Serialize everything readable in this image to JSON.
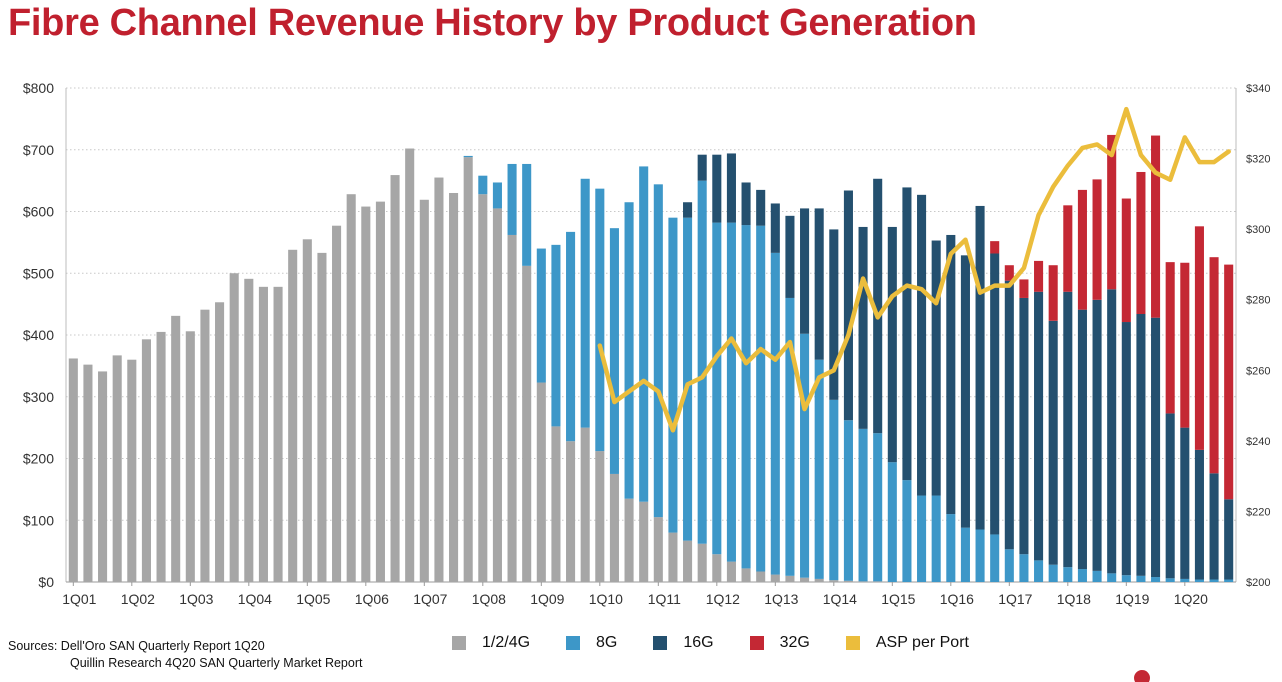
{
  "title": "Fibre Channel Revenue History by Product Generation",
  "sources": {
    "line1": "Sources:  Dell'Oro SAN Quarterly Report 1Q20",
    "line2": "Quillin Research 4Q20 SAN Quarterly Market Report"
  },
  "colors": {
    "g124": "#a6a6a6",
    "g8": "#3d97c8",
    "g16": "#24506f",
    "g32": "#c42834",
    "asp": "#ebbd3c"
  },
  "chart_data": {
    "type": "bar",
    "stacked": true,
    "title": "Fibre Channel Revenue History by Product Generation",
    "ylim": [
      0,
      800
    ],
    "y2lim": [
      200,
      340
    ],
    "y_ticks": [
      "$0",
      "$100",
      "$200",
      "$300",
      "$400",
      "$500",
      "$600",
      "$700",
      "$800"
    ],
    "y2_ticks": [
      "$200",
      "$220",
      "$240",
      "$260",
      "$280",
      "$300",
      "$320",
      "$340"
    ],
    "x_tick_labels": [
      "1Q01",
      "1Q02",
      "1Q03",
      "1Q04",
      "1Q05",
      "1Q06",
      "1Q07",
      "1Q08",
      "1Q09",
      "1Q10",
      "1Q11",
      "1Q12",
      "1Q13",
      "1Q14",
      "1Q15",
      "1Q16",
      "1Q17",
      "1Q18",
      "1Q19",
      "1Q20"
    ],
    "first_quarter": "1Q01",
    "grid": true,
    "legend_position": "bottom",
    "series": [
      {
        "name": "1/2/4G",
        "color": "#a6a6a6",
        "values": [
          362,
          352,
          341,
          367,
          360,
          393,
          405,
          431,
          406,
          441,
          453,
          500,
          491,
          478,
          478,
          538,
          555,
          533,
          577,
          628,
          608,
          616,
          659,
          702,
          619,
          655,
          630,
          688,
          628,
          605,
          562,
          512,
          323,
          252,
          228,
          250,
          212,
          175,
          135,
          130,
          105,
          80,
          67,
          62,
          45,
          33,
          22,
          17,
          12,
          10,
          7,
          5,
          3,
          2,
          1,
          1,
          0,
          0,
          0,
          0,
          0,
          0,
          0,
          0,
          0,
          0,
          0,
          0,
          0,
          0,
          0,
          0,
          0,
          0,
          0,
          0,
          0,
          0,
          0,
          0
        ]
      },
      {
        "name": "8G",
        "color": "#3d97c8",
        "values": [
          0,
          0,
          0,
          0,
          0,
          0,
          0,
          0,
          0,
          0,
          0,
          0,
          0,
          0,
          0,
          0,
          0,
          0,
          0,
          0,
          0,
          0,
          0,
          0,
          0,
          0,
          0,
          2,
          30,
          42,
          115,
          165,
          217,
          294,
          339,
          403,
          425,
          398,
          480,
          543,
          539,
          510,
          523,
          588,
          537,
          549,
          556,
          560,
          521,
          450,
          395,
          355,
          292,
          260,
          247,
          240,
          194,
          165,
          140,
          140,
          110,
          88,
          85,
          77,
          53,
          45,
          35,
          28,
          24,
          21,
          18,
          14,
          11,
          10,
          8,
          6,
          5,
          4,
          4,
          4
        ]
      },
      {
        "name": "16G",
        "color": "#24506f",
        "values": [
          0,
          0,
          0,
          0,
          0,
          0,
          0,
          0,
          0,
          0,
          0,
          0,
          0,
          0,
          0,
          0,
          0,
          0,
          0,
          0,
          0,
          0,
          0,
          0,
          0,
          0,
          0,
          0,
          0,
          0,
          0,
          0,
          0,
          0,
          0,
          0,
          0,
          0,
          0,
          0,
          0,
          0,
          25,
          42,
          110,
          112,
          69,
          58,
          80,
          133,
          203,
          245,
          276,
          372,
          327,
          412,
          381,
          474,
          487,
          413,
          452,
          441,
          524,
          455,
          435,
          415,
          435,
          395,
          446,
          420,
          439,
          460,
          410,
          424,
          420,
          267,
          245,
          210,
          172,
          130
        ]
      },
      {
        "name": "32G",
        "color": "#c42834",
        "values": [
          0,
          0,
          0,
          0,
          0,
          0,
          0,
          0,
          0,
          0,
          0,
          0,
          0,
          0,
          0,
          0,
          0,
          0,
          0,
          0,
          0,
          0,
          0,
          0,
          0,
          0,
          0,
          0,
          0,
          0,
          0,
          0,
          0,
          0,
          0,
          0,
          0,
          0,
          0,
          0,
          0,
          0,
          0,
          0,
          0,
          0,
          0,
          0,
          0,
          0,
          0,
          0,
          0,
          0,
          0,
          0,
          0,
          0,
          0,
          0,
          0,
          0,
          0,
          20,
          25,
          30,
          50,
          90,
          140,
          194,
          195,
          250,
          200,
          230,
          295,
          245,
          267,
          362,
          350,
          380
        ]
      }
    ],
    "line_series": {
      "name": "ASP per Port",
      "color": "#ebbd3c",
      "start_index": 36,
      "values": [
        267,
        251,
        254,
        257,
        254,
        243,
        256,
        258,
        264,
        269,
        262,
        266,
        263,
        268,
        249,
        258,
        260,
        270,
        286,
        275,
        281,
        284,
        283,
        279,
        293,
        297,
        282,
        284,
        284,
        289,
        304,
        312,
        318,
        323,
        324,
        321,
        334,
        321,
        316,
        314,
        326,
        319,
        319,
        322
      ]
    }
  },
  "legend": [
    {
      "label": "1/2/4G",
      "color": "#a6a6a6"
    },
    {
      "label": "8G",
      "color": "#3d97c8"
    },
    {
      "label": "16G",
      "color": "#24506f"
    },
    {
      "label": "32G",
      "color": "#c42834"
    },
    {
      "label": "ASP per Port",
      "color": "#ebbd3c"
    }
  ],
  "logo": {
    "mark": "brocade-logo",
    "color": "#c42834"
  }
}
